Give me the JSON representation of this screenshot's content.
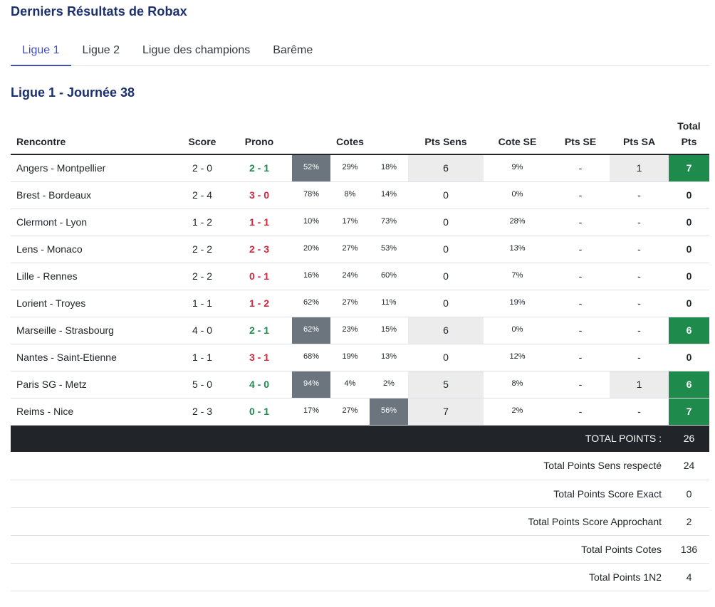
{
  "page_title": "Derniers Résultats de Robax",
  "tabs": [
    {
      "label": "Ligue 1",
      "active": true
    },
    {
      "label": "Ligue 2",
      "active": false
    },
    {
      "label": "Ligue des champions",
      "active": false
    },
    {
      "label": "Barême",
      "active": false
    }
  ],
  "section_title": "Ligue 1 - Journée 38",
  "headers": {
    "rencontre": "Rencontre",
    "score": "Score",
    "prono": "Prono",
    "cotes": "Cotes",
    "pts_sens": "Pts Sens",
    "cote_se": "Cote SE",
    "pts_se": "Pts SE",
    "pts_sa": "Pts SA",
    "total_pts_line1": "Total",
    "total_pts_line2": "Pts"
  },
  "rows": [
    {
      "match": "Angers - Montpellier",
      "score": "2 - 0",
      "prono": "2 - 1",
      "cotes": [
        "52%",
        "29%",
        "18%"
      ],
      "pts_sens": "6",
      "cote_se": "9%",
      "pts_se": "-",
      "pts_sa": "1",
      "total": "7"
    },
    {
      "match": "Brest - Bordeaux",
      "score": "2 - 4",
      "prono": "3 - 0",
      "cotes": [
        "78%",
        "8%",
        "14%"
      ],
      "pts_sens": "0",
      "cote_se": "0%",
      "pts_se": "-",
      "pts_sa": "-",
      "total": "0"
    },
    {
      "match": "Clermont - Lyon",
      "score": "1 - 2",
      "prono": "1 - 1",
      "cotes": [
        "10%",
        "17%",
        "73%"
      ],
      "pts_sens": "0",
      "cote_se": "28%",
      "pts_se": "-",
      "pts_sa": "-",
      "total": "0"
    },
    {
      "match": "Lens - Monaco",
      "score": "2 - 2",
      "prono": "2 - 3",
      "cotes": [
        "20%",
        "27%",
        "53%"
      ],
      "pts_sens": "0",
      "cote_se": "13%",
      "pts_se": "-",
      "pts_sa": "-",
      "total": "0"
    },
    {
      "match": "Lille - Rennes",
      "score": "2 - 2",
      "prono": "0 - 1",
      "cotes": [
        "16%",
        "24%",
        "60%"
      ],
      "pts_sens": "0",
      "cote_se": "7%",
      "pts_se": "-",
      "pts_sa": "-",
      "total": "0"
    },
    {
      "match": "Lorient - Troyes",
      "score": "1 - 1",
      "prono": "1 - 2",
      "cotes": [
        "62%",
        "27%",
        "11%"
      ],
      "pts_sens": "0",
      "cote_se": "19%",
      "pts_se": "-",
      "pts_sa": "-",
      "total": "0"
    },
    {
      "match": "Marseille - Strasbourg",
      "score": "4 - 0",
      "prono": "2 - 1",
      "cotes": [
        "62%",
        "23%",
        "15%"
      ],
      "pts_sens": "6",
      "cote_se": "0%",
      "pts_se": "-",
      "pts_sa": "-",
      "total": "6"
    },
    {
      "match": "Nantes - Saint-Etienne",
      "score": "1 - 1",
      "prono": "3 - 1",
      "cotes": [
        "68%",
        "19%",
        "13%"
      ],
      "pts_sens": "0",
      "cote_se": "12%",
      "pts_se": "-",
      "pts_sa": "-",
      "total": "0"
    },
    {
      "match": "Paris SG - Metz",
      "score": "5 - 0",
      "prono": "4 - 0",
      "cotes": [
        "94%",
        "4%",
        "2%"
      ],
      "pts_sens": "5",
      "cote_se": "8%",
      "pts_se": "-",
      "pts_sa": "1",
      "total": "6"
    },
    {
      "match": "Reims - Nice",
      "score": "2 - 3",
      "prono": "0 - 1",
      "cotes": [
        "17%",
        "27%",
        "56%"
      ],
      "pts_sens": "7",
      "cote_se": "2%",
      "pts_se": "-",
      "pts_sa": "-",
      "total": "7"
    }
  ],
  "total_points": {
    "label": "TOTAL POINTS :",
    "value": "26"
  },
  "summary": [
    {
      "label": "Total Points Sens respecté",
      "value": "24"
    },
    {
      "label": "Total Points Score Exact",
      "value": "0"
    },
    {
      "label": "Total Points Score Approchant",
      "value": "2"
    },
    {
      "label": "Total Points Cotes",
      "value": "136"
    },
    {
      "label": "Total Points 1N2",
      "value": "4"
    }
  ],
  "colors": {
    "title": "#1a2f6e",
    "tab_active": "#3f4fbf",
    "prono_win": "#1e8a4c",
    "prono_lose": "#d7263d",
    "cote_highlight": "#6c757d",
    "pts_highlight": "#ececec",
    "total_win": "#1e8a4c",
    "total_bar": "#212529"
  }
}
